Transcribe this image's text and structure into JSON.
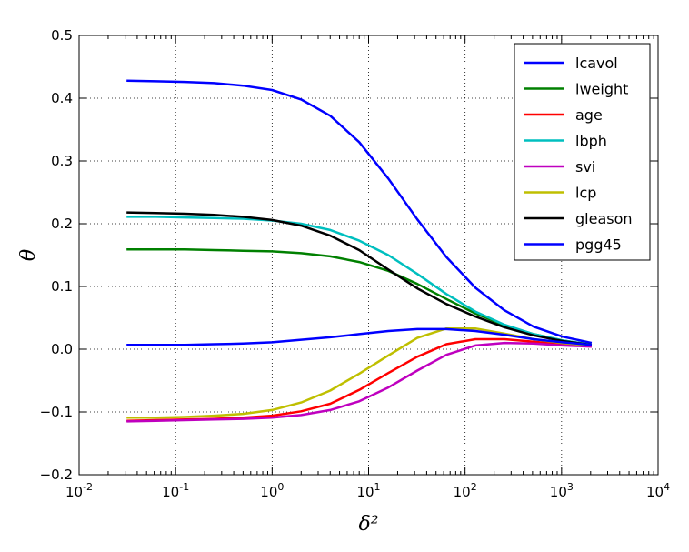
{
  "chart_data": {
    "type": "line",
    "title": "",
    "xlabel": "δ²",
    "ylabel": "θ",
    "xscale": "log",
    "xlim": [
      0.01,
      10000
    ],
    "ylim": [
      -0.2,
      0.5
    ],
    "grid": true,
    "legend_position": "top-right",
    "x_ticks": [
      {
        "base": "10",
        "exp": "-2",
        "value": 0.01
      },
      {
        "base": "10",
        "exp": "-1",
        "value": 0.1
      },
      {
        "base": "10",
        "exp": "0",
        "value": 1
      },
      {
        "base": "10",
        "exp": "1",
        "value": 10
      },
      {
        "base": "10",
        "exp": "2",
        "value": 100
      },
      {
        "base": "10",
        "exp": "3",
        "value": 1000
      },
      {
        "base": "10",
        "exp": "4",
        "value": 10000
      }
    ],
    "y_ticks": [
      {
        "label": "−0.2",
        "value": -0.2
      },
      {
        "label": "−0.1",
        "value": -0.1
      },
      {
        "label": "0.0",
        "value": 0.0
      },
      {
        "label": "0.1",
        "value": 0.1
      },
      {
        "label": "0.2",
        "value": 0.2
      },
      {
        "label": "0.3",
        "value": 0.3
      },
      {
        "label": "0.4",
        "value": 0.4
      },
      {
        "label": "0.5",
        "value": 0.5
      }
    ],
    "x": [
      0.031,
      0.0625,
      0.125,
      0.25,
      0.5,
      1,
      2,
      4,
      8,
      16,
      32,
      64,
      128,
      256,
      512,
      1024,
      2048
    ],
    "series": [
      {
        "name": "lcavol",
        "color": "#0000ff",
        "values": [
          0.428,
          0.427,
          0.426,
          0.424,
          0.42,
          0.413,
          0.398,
          0.372,
          0.33,
          0.272,
          0.207,
          0.147,
          0.098,
          0.062,
          0.036,
          0.02,
          0.01
        ]
      },
      {
        "name": "lweight",
        "color": "#008000",
        "values": [
          0.159,
          0.159,
          0.159,
          0.158,
          0.157,
          0.156,
          0.153,
          0.148,
          0.139,
          0.125,
          0.104,
          0.08,
          0.057,
          0.038,
          0.024,
          0.014,
          0.007
        ]
      },
      {
        "name": "age",
        "color": "#ff0000",
        "values": [
          -0.114,
          -0.113,
          -0.112,
          -0.111,
          -0.109,
          -0.106,
          -0.099,
          -0.087,
          -0.065,
          -0.038,
          -0.012,
          0.008,
          0.016,
          0.016,
          0.012,
          0.008,
          0.005
        ]
      },
      {
        "name": "lbph",
        "color": "#00bfbf",
        "values": [
          0.211,
          0.211,
          0.21,
          0.209,
          0.208,
          0.205,
          0.2,
          0.19,
          0.173,
          0.15,
          0.12,
          0.088,
          0.06,
          0.039,
          0.024,
          0.014,
          0.007
        ]
      },
      {
        "name": "svi",
        "color": "#bf00bf",
        "values": [
          -0.115,
          -0.114,
          -0.113,
          -0.112,
          -0.111,
          -0.109,
          -0.105,
          -0.097,
          -0.083,
          -0.061,
          -0.034,
          -0.009,
          0.006,
          0.01,
          0.009,
          0.006,
          0.004
        ]
      },
      {
        "name": "lcp",
        "color": "#bfbf00",
        "values": [
          -0.109,
          -0.109,
          -0.108,
          -0.106,
          -0.103,
          -0.097,
          -0.085,
          -0.066,
          -0.039,
          -0.01,
          0.018,
          0.033,
          0.033,
          0.025,
          0.016,
          0.01,
          0.006
        ]
      },
      {
        "name": "gleason",
        "color": "#000000",
        "values": [
          0.218,
          0.217,
          0.216,
          0.214,
          0.211,
          0.206,
          0.197,
          0.181,
          0.158,
          0.127,
          0.097,
          0.072,
          0.052,
          0.035,
          0.022,
          0.013,
          0.007
        ]
      },
      {
        "name": "pgg45",
        "color": "#0000ff",
        "values": [
          0.007,
          0.007,
          0.007,
          0.008,
          0.009,
          0.011,
          0.015,
          0.019,
          0.024,
          0.029,
          0.032,
          0.032,
          0.029,
          0.023,
          0.016,
          0.011,
          0.007
        ]
      }
    ]
  }
}
